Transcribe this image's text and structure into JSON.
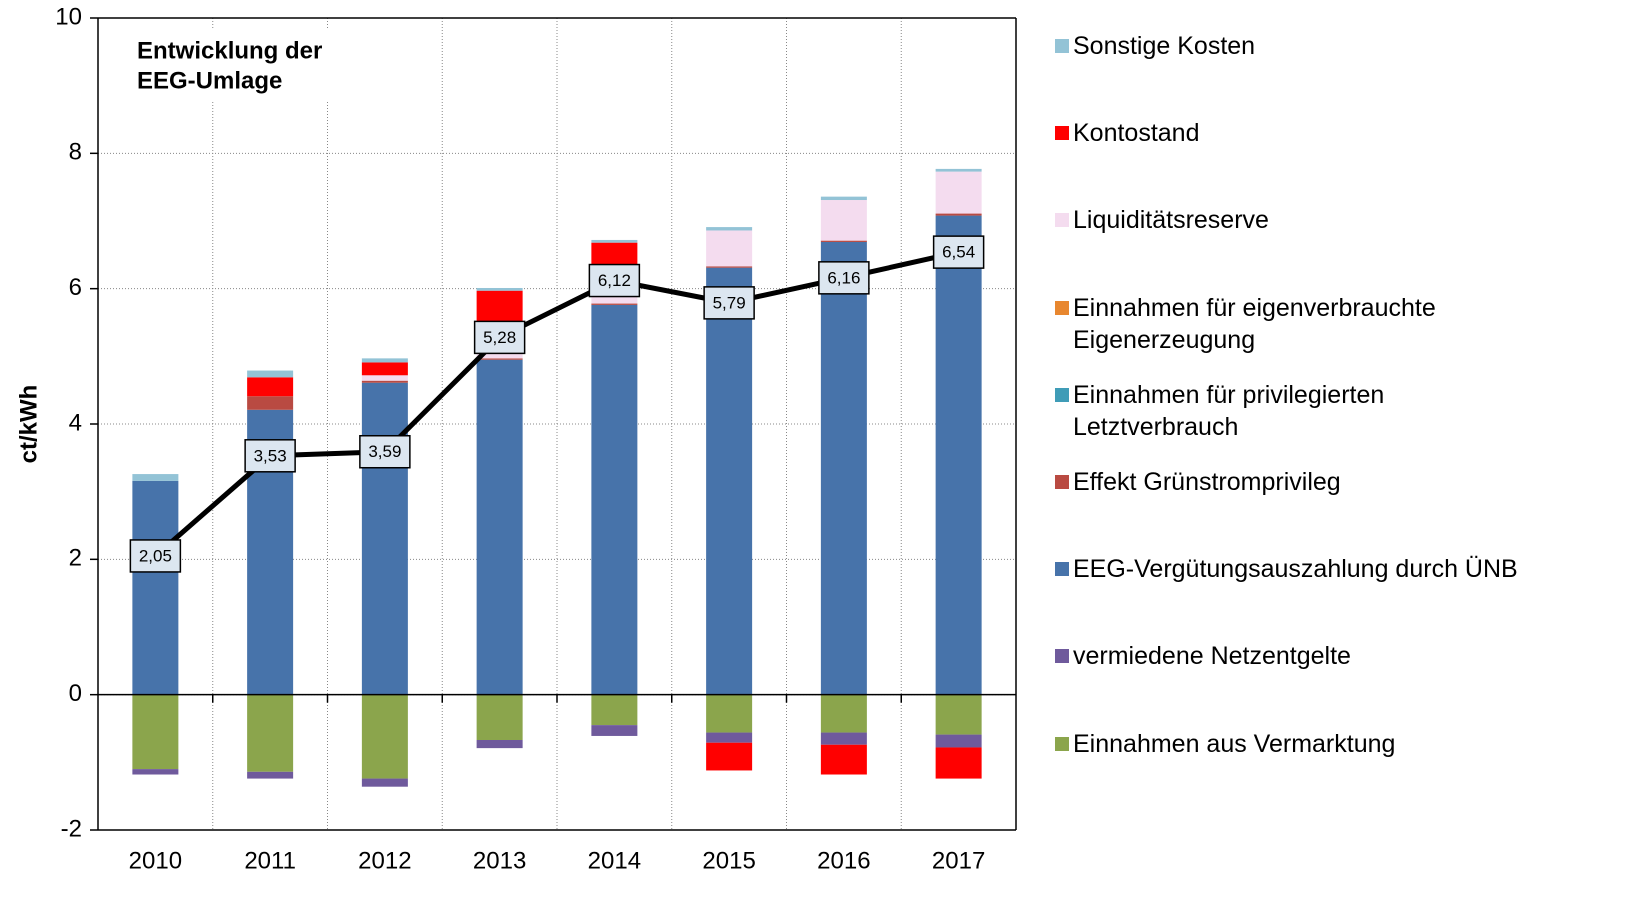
{
  "chart_data": {
    "type": "bar",
    "stacked": true,
    "title": [
      "Entwicklung der",
      "EEG-Umlage"
    ],
    "ylabel": "ct/kWh",
    "categories": [
      "2010",
      "2011",
      "2012",
      "2013",
      "2014",
      "2015",
      "2016",
      "2017"
    ],
    "ylim": [
      -2,
      10
    ],
    "yticks": [
      -2,
      0,
      2,
      4,
      6,
      8,
      10
    ],
    "grid": true,
    "legend": "right",
    "series": [
      {
        "name": "Einnahmen aus Vermarktung",
        "color": "#8ba54c",
        "values": [
          -1.1,
          -1.14,
          -1.24,
          -0.67,
          -0.45,
          -0.56,
          -0.56,
          -0.59
        ]
      },
      {
        "name": "vermiedene Netzentgelte",
        "color": "#6f5a9c",
        "values": [
          -0.08,
          -0.1,
          -0.12,
          -0.12,
          -0.16,
          -0.15,
          -0.18,
          -0.19
        ]
      },
      {
        "name": "EEG-Vergütungsauszahlung durch ÜNB",
        "color": "#4773aa",
        "values": [
          3.16,
          4.21,
          4.61,
          4.95,
          5.76,
          6.31,
          6.69,
          7.08
        ]
      },
      {
        "name": "Effekt Grünstromprivileg",
        "color": "#b94a42",
        "values": [
          0,
          0.2,
          0.03,
          0.02,
          0.02,
          0.02,
          0.02,
          0.03
        ]
      },
      {
        "name": "Einnahmen für privilegierten Letztverbrauch",
        "color": "#3f9cb7",
        "values": [
          0,
          0,
          0,
          0,
          0,
          0,
          0,
          0
        ]
      },
      {
        "name": "Einnahmen für eigenverbrauchte Eigenerzeugung",
        "color": "#e8872f",
        "values": [
          0,
          0,
          0,
          0,
          0,
          0,
          0,
          0
        ]
      },
      {
        "name": "Liquiditätsreserve",
        "color": "#f4dcef",
        "values": [
          0,
          0,
          0.08,
          0.5,
          0.55,
          0.53,
          0.6,
          0.62
        ]
      },
      {
        "name": "Kontostand",
        "color": "#ff0000",
        "values": [
          0,
          0.28,
          0.19,
          0.5,
          0.35,
          -0.41,
          -0.44,
          -0.46
        ]
      },
      {
        "name": "Sonstige Kosten",
        "color": "#93c3d6",
        "values": [
          0.1,
          0.1,
          0.06,
          0.04,
          0.04,
          0.05,
          0.05,
          0.04
        ]
      }
    ],
    "line": {
      "color": "#000000",
      "values": [
        2.05,
        3.53,
        3.59,
        5.28,
        6.12,
        5.79,
        6.16,
        6.54
      ],
      "value_labels": [
        "2,05",
        "3,53",
        "3,59",
        "5,28",
        "6,12",
        "5,79",
        "6,16",
        "6,54"
      ]
    }
  }
}
